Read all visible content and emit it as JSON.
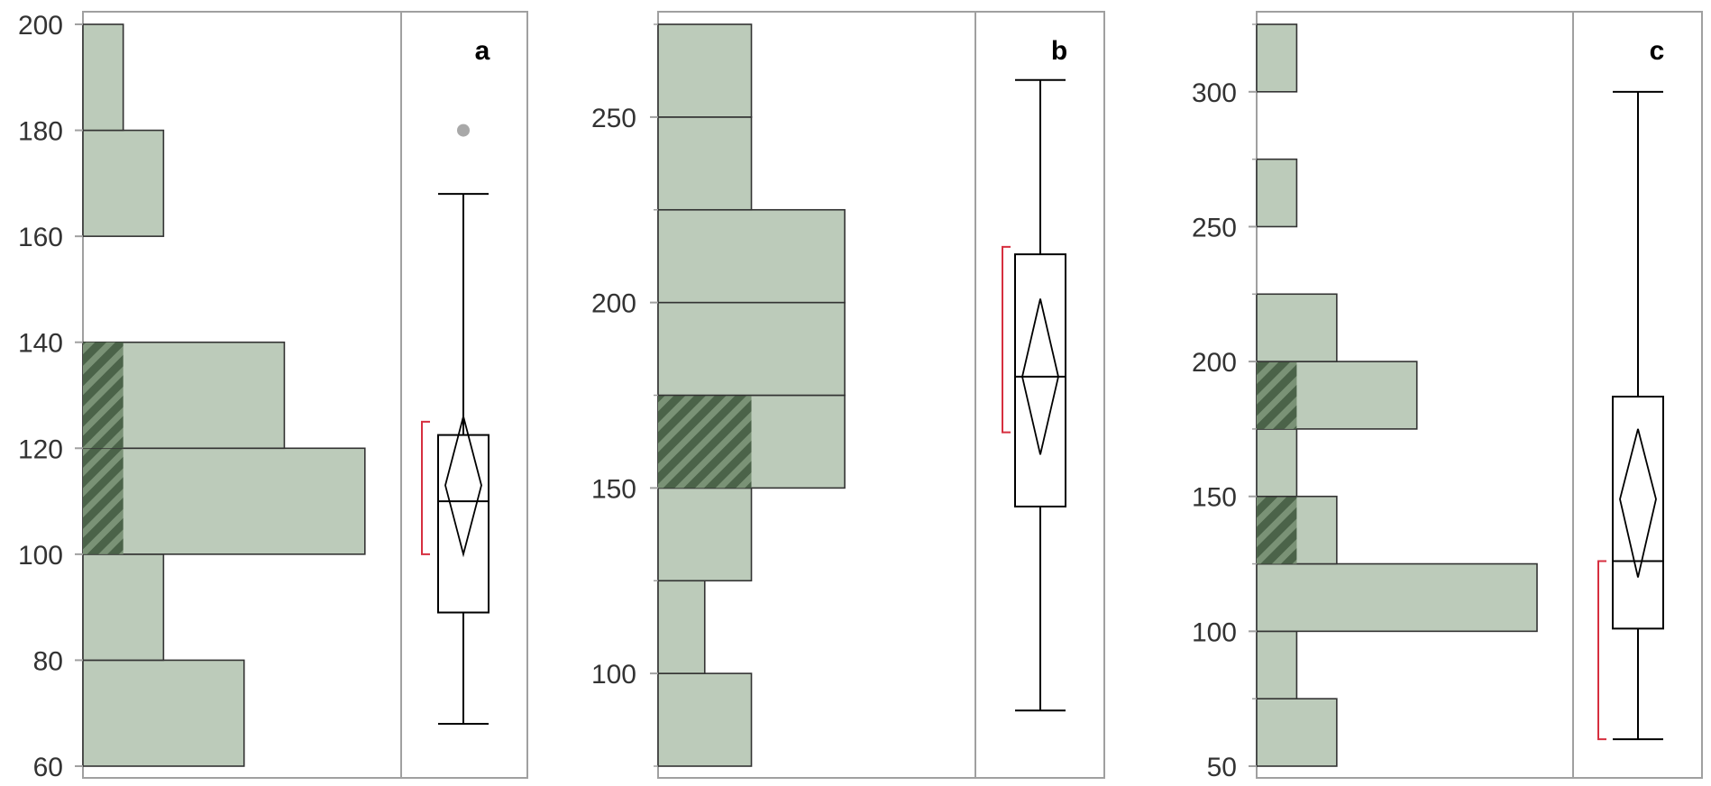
{
  "colors": {
    "bar_fill": "#bccbba",
    "bar_stroke": "#333333",
    "hatch_dark": "#4b6349",
    "hatch_light": "#7a9276",
    "frame": "#a0a0a0",
    "box_stroke": "#000000",
    "bracket": "#d62f3f",
    "outlier": "#a8a8a8"
  },
  "chart_data": [
    {
      "type": "histogram",
      "letter": "a",
      "orientation": "horizontal",
      "ylim": [
        60,
        200
      ],
      "yticks": [
        "60",
        "80",
        "100",
        "120",
        "140",
        "160",
        "180",
        "200"
      ],
      "yticks_minor": [],
      "xlim": [
        0,
        7.9
      ],
      "bins": [
        {
          "lo": 60,
          "hi": 80,
          "count": 4
        },
        {
          "lo": 80,
          "hi": 100,
          "count": 2
        },
        {
          "lo": 100,
          "hi": 120,
          "count": 7,
          "hatched": 1
        },
        {
          "lo": 120,
          "hi": 140,
          "count": 5,
          "hatched": 1
        },
        {
          "lo": 160,
          "hi": 180,
          "count": 2
        },
        {
          "lo": 180,
          "hi": 200,
          "count": 1
        }
      ],
      "box": {
        "min": 68,
        "q1": 89,
        "median": 110,
        "q3": 122.5,
        "max": 168
      },
      "mean_diamond": {
        "mean": 113,
        "lower": 100,
        "upper": 126
      },
      "shortest_half": [
        100,
        125
      ],
      "outliers": [
        180
      ]
    },
    {
      "type": "histogram",
      "letter": "b",
      "orientation": "horizontal",
      "ylim": [
        75,
        275
      ],
      "yticks": [
        "100",
        "150",
        "200",
        "250"
      ],
      "yticks_minor": [
        75,
        125,
        175,
        225,
        275
      ],
      "xlim": [
        0,
        3.4
      ],
      "bins": [
        {
          "lo": 75,
          "hi": 100,
          "count": 1
        },
        {
          "lo": 100,
          "hi": 125,
          "count": 0.5
        },
        {
          "lo": 125,
          "hi": 150,
          "count": 1
        },
        {
          "lo": 150,
          "hi": 175,
          "count": 2,
          "hatched": 1
        },
        {
          "lo": 175,
          "hi": 200,
          "count": 2
        },
        {
          "lo": 200,
          "hi": 225,
          "count": 2
        },
        {
          "lo": 225,
          "hi": 250,
          "count": 1
        },
        {
          "lo": 250,
          "hi": 275,
          "count": 1
        }
      ],
      "box": {
        "min": 90,
        "q1": 145,
        "median": 180,
        "q3": 213,
        "max": 260
      },
      "mean_diamond": {
        "mean": 180,
        "lower": 159,
        "upper": 201
      },
      "shortest_half": [
        165,
        215
      ],
      "outliers": []
    },
    {
      "type": "histogram",
      "letter": "c",
      "orientation": "horizontal",
      "ylim": [
        50,
        325
      ],
      "yticks": [
        "50",
        "100",
        "150",
        "200",
        "250",
        "300"
      ],
      "yticks_minor": [
        75,
        125,
        175,
        225,
        275,
        325
      ],
      "xlim": [
        0,
        7.9
      ],
      "bins": [
        {
          "lo": 50,
          "hi": 75,
          "count": 2
        },
        {
          "lo": 75,
          "hi": 100,
          "count": 1
        },
        {
          "lo": 100,
          "hi": 125,
          "count": 7
        },
        {
          "lo": 125,
          "hi": 150,
          "count": 2,
          "hatched": 1
        },
        {
          "lo": 150,
          "hi": 175,
          "count": 1
        },
        {
          "lo": 175,
          "hi": 200,
          "count": 4,
          "hatched": 1
        },
        {
          "lo": 200,
          "hi": 225,
          "count": 2
        },
        {
          "lo": 250,
          "hi": 275,
          "count": 1
        },
        {
          "lo": 300,
          "hi": 325,
          "count": 1
        }
      ],
      "box": {
        "min": 60,
        "q1": 101,
        "median": 126,
        "q3": 187,
        "max": 300
      },
      "mean_diamond": {
        "mean": 149,
        "lower": 120,
        "upper": 175
      },
      "shortest_half": [
        60,
        126
      ],
      "outliers": []
    }
  ]
}
